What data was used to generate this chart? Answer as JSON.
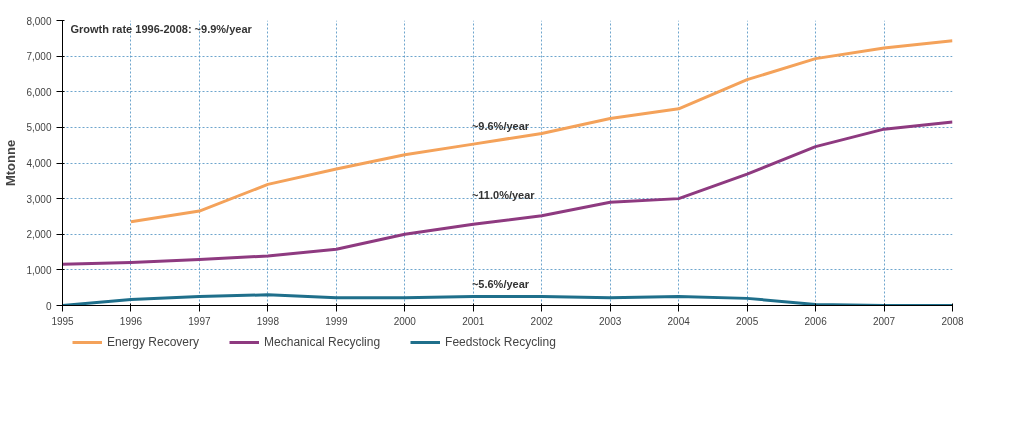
{
  "chart_data": {
    "type": "line",
    "ylabel": "Mtonne",
    "x": [
      1995,
      1996,
      1997,
      1998,
      1999,
      2000,
      2001,
      2002,
      2003,
      2004,
      2005,
      2006,
      2007,
      2008
    ],
    "series": [
      {
        "name": "Energy Recovery",
        "color": "#f4a25a",
        "values": [
          null,
          2350,
          2650,
          3400,
          3830,
          4230,
          4530,
          4830,
          5250,
          5520,
          6340,
          6930,
          7230,
          7430
        ]
      },
      {
        "name": "Mechanical Recycling",
        "color": "#8e3a80",
        "values": [
          1160,
          1210,
          1290,
          1390,
          1580,
          2000,
          2280,
          2520,
          2900,
          3000,
          3690,
          4460,
          4950,
          5150
        ]
      },
      {
        "name": "Feedstock Recycling",
        "color": "#1f6f8b",
        "values": [
          0,
          170,
          250,
          300,
          220,
          220,
          250,
          250,
          220,
          250,
          200,
          30,
          0,
          0
        ]
      }
    ],
    "annotations": [
      "Growth rate 1996-2008: ~9.9%/year",
      "~9.6%/year",
      "~11.0%/year",
      "~5.6%/year"
    ],
    "xlim": [
      1995,
      2008
    ],
    "xticks": [
      1995,
      1996,
      1997,
      1998,
      1999,
      2000,
      2001,
      2002,
      2003,
      2004,
      2005,
      2006,
      2007,
      2008
    ],
    "ylim": [
      0,
      8000
    ],
    "yticks": [
      0,
      {
        "value": 1000,
        "label": "1,000"
      },
      {
        "value": 2000,
        "label": "2,000"
      },
      {
        "value": 3000,
        "label": "3,000"
      },
      {
        "value": 4000,
        "label": "4,000"
      },
      {
        "value": 5000,
        "label": "5,000"
      },
      {
        "value": 6000,
        "label": "6,000"
      },
      {
        "value": 7000,
        "label": "7,000"
      },
      {
        "value": 8000,
        "label": "8,000"
      }
    ],
    "grid": true,
    "legend": "bottom",
    "marker": "none",
    "line_style": "solid"
  }
}
